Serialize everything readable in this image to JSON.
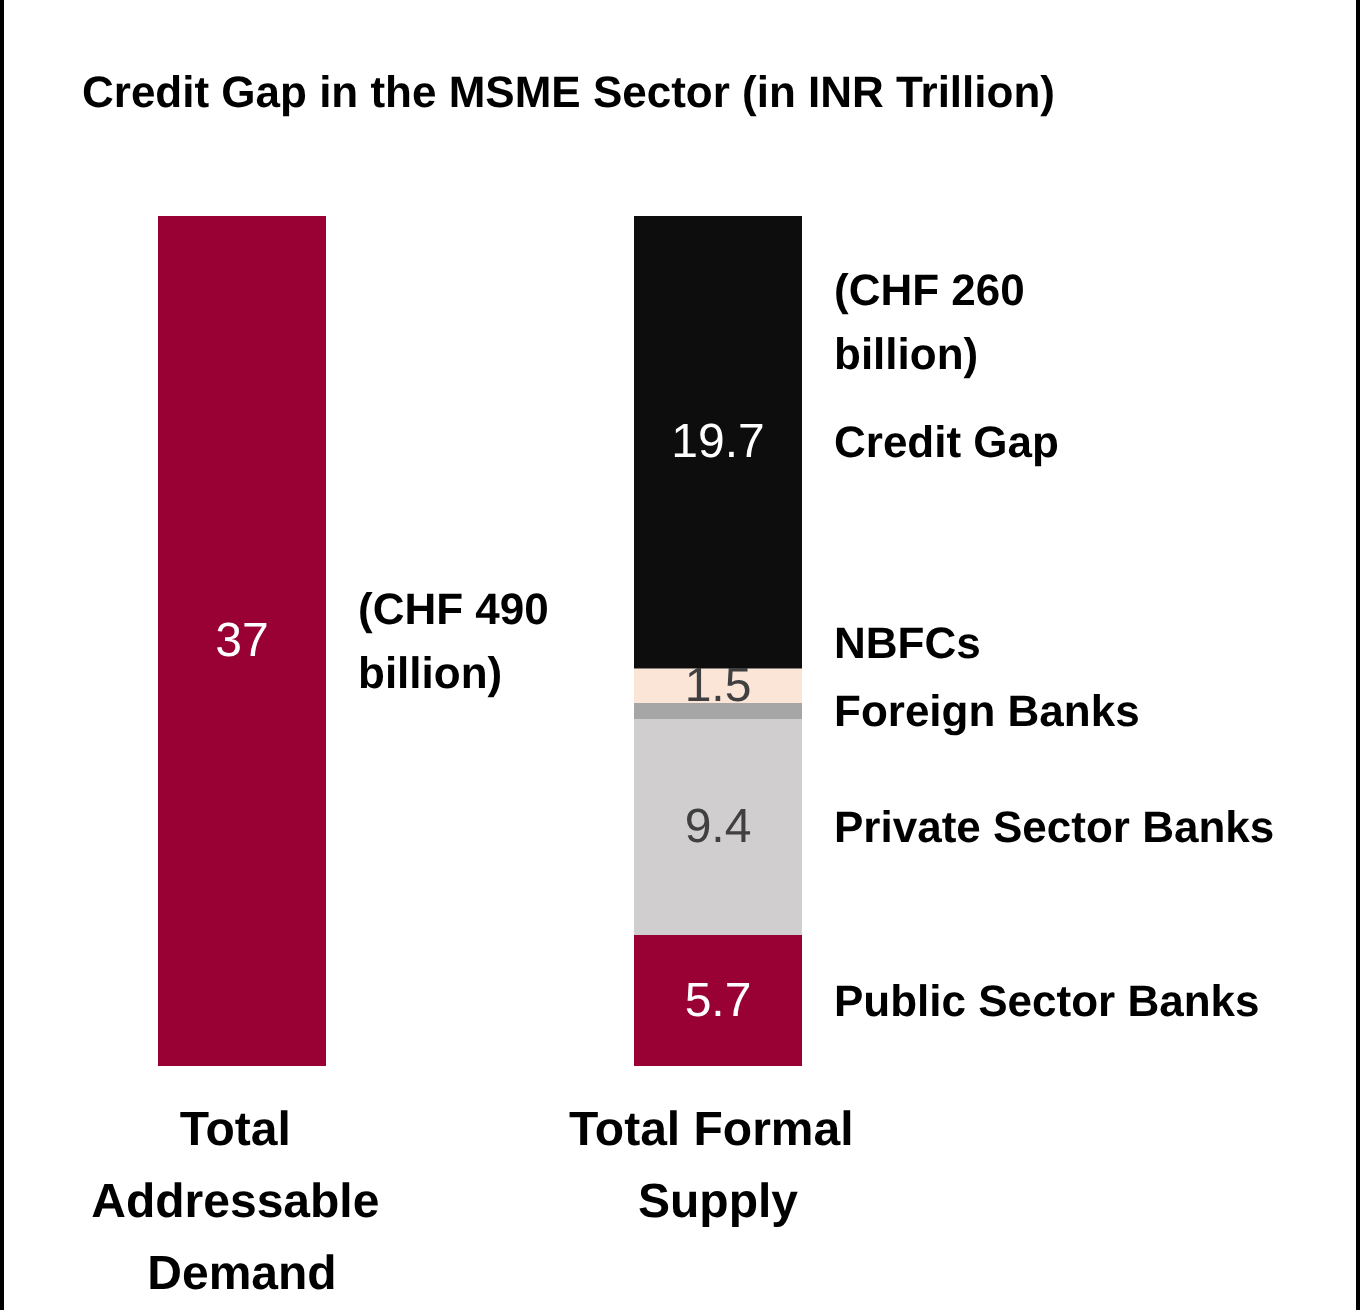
{
  "chart_data": {
    "type": "bar",
    "title": "Credit Gap in the MSME Sector (in INR Trillion)",
    "stacked": true,
    "categories": [
      "Total Addressable Demand",
      "Total Formal Supply"
    ],
    "series": [
      {
        "color": "#990033",
        "values": [
          37,
          null
        ],
        "value_labels": [
          "37",
          null
        ]
      },
      {
        "name": "Public Sector Banks",
        "color": "#990033",
        "values": [
          null,
          5.7
        ],
        "value_labels": [
          null,
          "5.7"
        ]
      },
      {
        "name": "Private Sector Banks",
        "color": "#d0cece",
        "values": [
          null,
          9.4
        ],
        "value_labels": [
          null,
          "9.4"
        ]
      },
      {
        "name": "Foreign Banks",
        "color": "#a6a6a6",
        "values": [
          null,
          0.7
        ],
        "value_labels": [
          null,
          null
        ]
      },
      {
        "name": "NBFCs",
        "color": "#fbe5d6",
        "values": [
          null,
          1.5
        ],
        "value_labels": [
          null,
          "1.5"
        ]
      },
      {
        "name": "Credit Gap",
        "color": "#0d0d0d",
        "values": [
          null,
          19.7
        ],
        "value_labels": [
          null,
          "19.7"
        ]
      }
    ],
    "annotations": [
      "(CHF 490 billion)",
      "(CHF 260 billion)"
    ],
    "legend": false
  }
}
